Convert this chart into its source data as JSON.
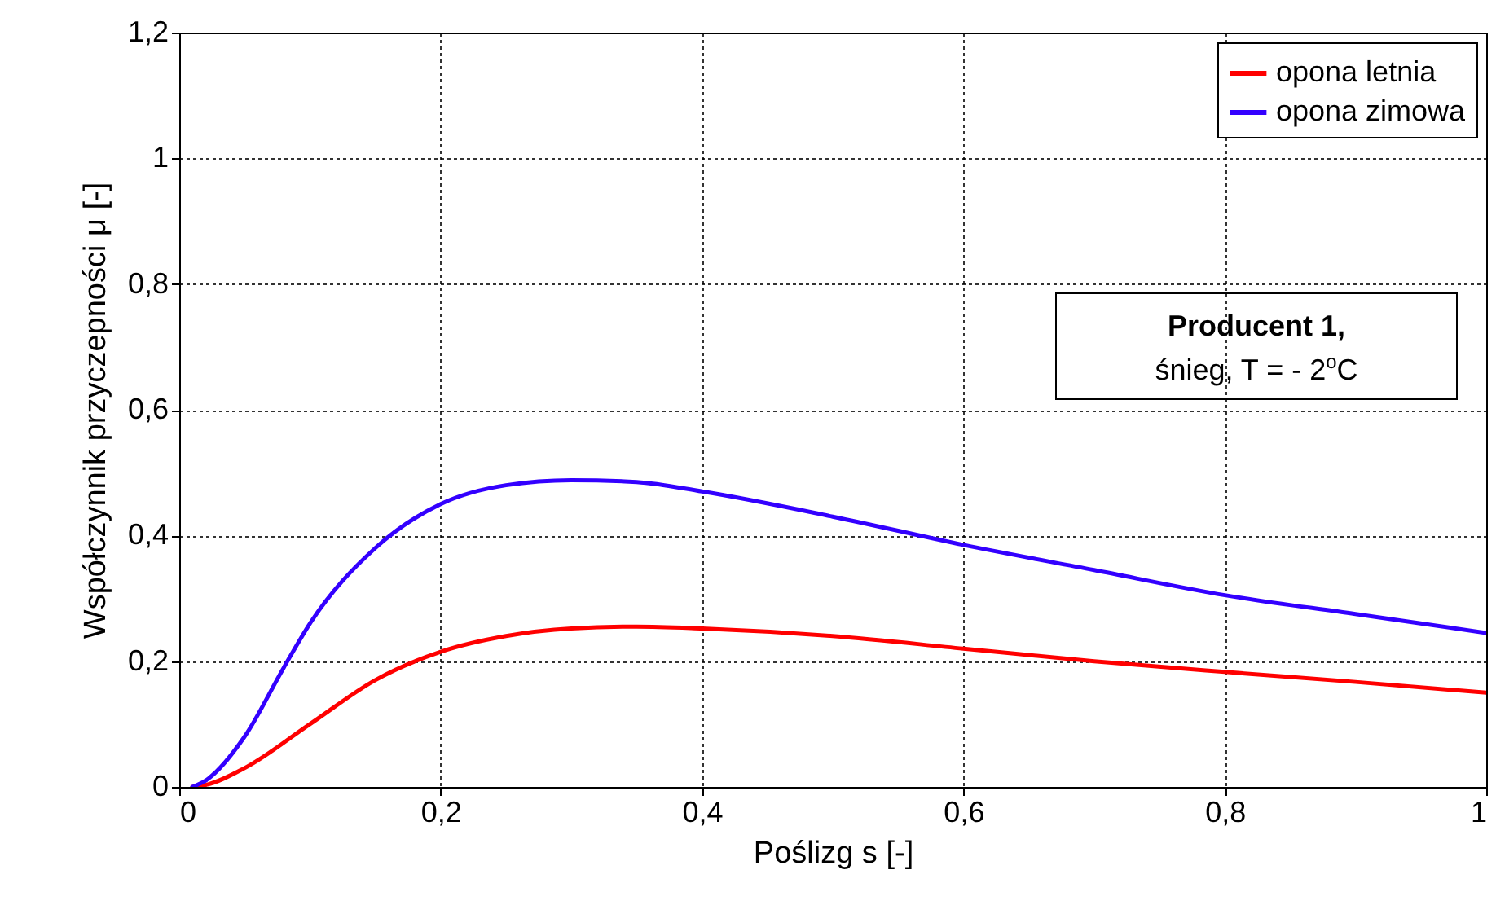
{
  "chart_data": {
    "type": "line",
    "xlabel": "Poślizg s [-]",
    "ylabel": "Współczynnik przyczepności μ [-]",
    "xlim": [
      0,
      1
    ],
    "xticks": [
      0,
      {
        "value": 0.2,
        "label": "0,2"
      },
      {
        "value": 0.4,
        "label": "0,4"
      },
      {
        "value": 0.6,
        "label": "0,6"
      },
      {
        "value": 0.8,
        "label": "0,8"
      },
      1
    ],
    "ylim": [
      0,
      1.2
    ],
    "yticks": [
      0,
      {
        "value": 0.2,
        "label": "0,2"
      },
      {
        "value": 0.4,
        "label": "0,4"
      },
      {
        "value": 0.6,
        "label": "0,6"
      },
      {
        "value": 0.8,
        "label": "0,8"
      },
      1,
      {
        "value": 1.2,
        "label": "1,2"
      }
    ],
    "grid": true,
    "legend": "top right",
    "line_style": "solid",
    "marker": "none",
    "annotations": [
      "Producent 1,",
      "śnieg, T = - 2$^{o}$C"
    ],
    "series": [
      {
        "name": "opona letnia",
        "color": "#ff0000",
        "x": [
          0.01,
          0.02,
          0.05,
          0.1,
          0.15,
          0.2,
          0.25,
          0.3,
          0.35,
          0.4,
          0.5,
          0.6,
          0.7,
          0.8,
          0.9,
          1
        ],
        "values": [
          0,
          0.003,
          0.03,
          0.1,
          0.17,
          0.215,
          0.24,
          0.252,
          0.255,
          0.252,
          0.24,
          0.22,
          0.2,
          0.183,
          0.167,
          0.15
        ]
      },
      {
        "name": "opona zimowa",
        "color": "#3300ff",
        "x": [
          0.01,
          0.02,
          0.05,
          0.08,
          0.1,
          0.15,
          0.2,
          0.25,
          0.3,
          0.35,
          0.4,
          0.5,
          0.6,
          0.7,
          0.8,
          0.9,
          1
        ],
        "values": [
          0,
          0.01,
          0.08,
          0.19,
          0.26,
          0.38,
          0.45,
          0.48,
          0.488,
          0.485,
          0.47,
          0.43,
          0.385,
          0.345,
          0.305,
          0.275,
          0.245
        ]
      }
    ]
  }
}
